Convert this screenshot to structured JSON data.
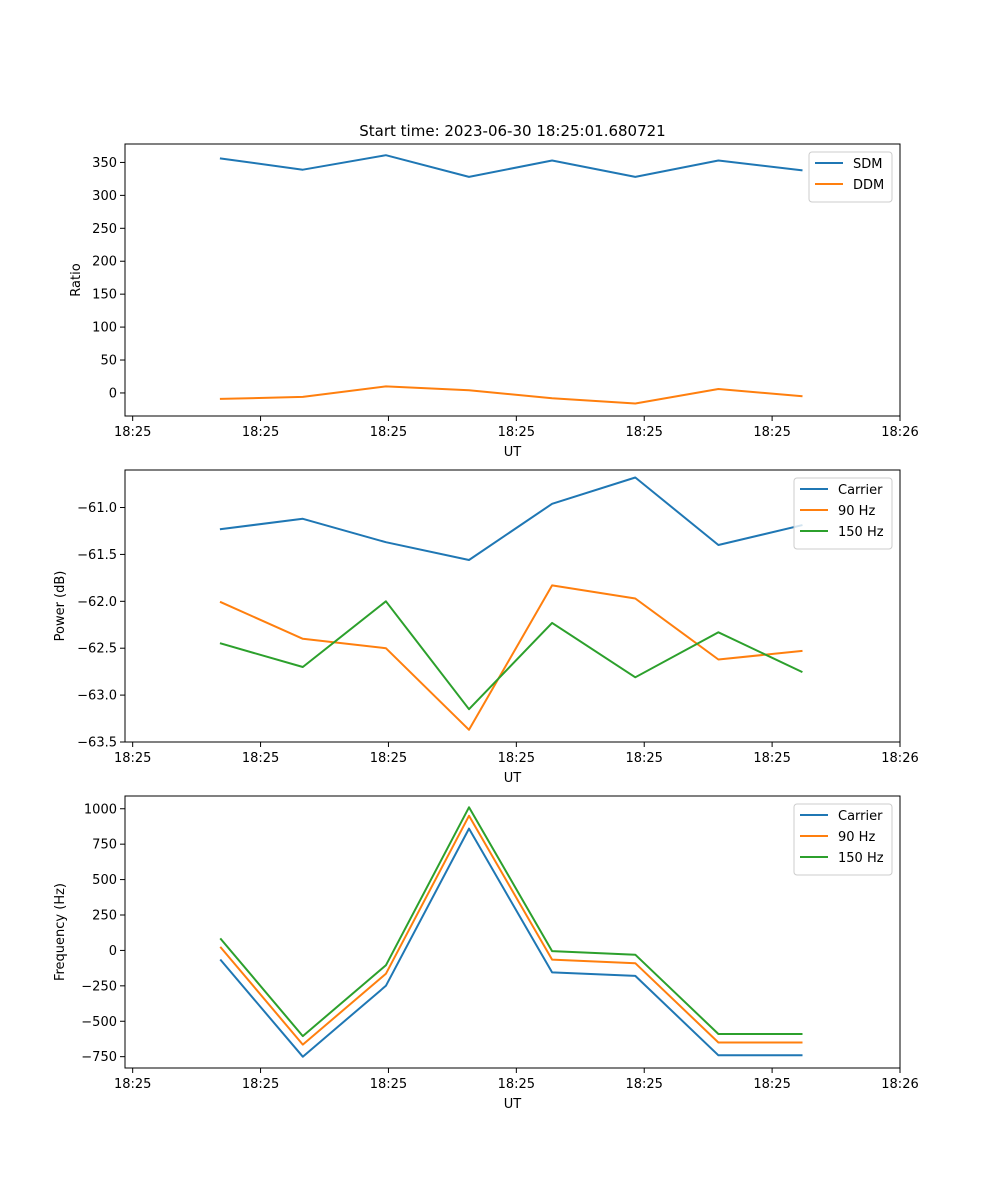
{
  "figure_title": "Start time: 2023-06-30 18:25:01.680721",
  "chart_data": [
    {
      "type": "line",
      "title": "Start time: 2023-06-30 18:25:01.680721",
      "xlabel": "UT",
      "ylabel": "Ratio",
      "x": [
        0.69,
        1.33,
        1.98,
        2.63,
        3.28,
        3.93,
        4.58,
        5.23
      ],
      "xlim": [
        -0.06,
        6.0
      ],
      "ylim": [
        -35,
        378
      ],
      "x_ticks": [
        {
          "value": 0,
          "label": "18:25"
        },
        {
          "value": 1,
          "label": "18:25"
        },
        {
          "value": 2,
          "label": "18:25"
        },
        {
          "value": 3,
          "label": "18:25"
        },
        {
          "value": 4,
          "label": "18:25"
        },
        {
          "value": 5,
          "label": "18:25"
        },
        {
          "value": 6,
          "label": "18:26"
        }
      ],
      "y_ticks": [
        0,
        50,
        100,
        150,
        200,
        250,
        300,
        350
      ],
      "y_tick_labels": [
        "0",
        "50",
        "100",
        "150",
        "200",
        "250",
        "300",
        "350"
      ],
      "legend_position": "upper right",
      "grid": false,
      "series": [
        {
          "name": "SDM",
          "color": "#1f77b4",
          "values": [
            356,
            339,
            361,
            328,
            353,
            328,
            353,
            338
          ]
        },
        {
          "name": "DDM",
          "color": "#ff7f0e",
          "values": [
            -9,
            -6,
            10,
            4,
            -8,
            -16,
            6,
            -5
          ]
        }
      ]
    },
    {
      "type": "line",
      "xlabel": "UT",
      "ylabel": "Power (dB)",
      "x": [
        0.69,
        1.33,
        1.98,
        2.63,
        3.28,
        3.93,
        4.58,
        5.23
      ],
      "xlim": [
        -0.06,
        6.0
      ],
      "ylim": [
        -63.5,
        -60.6
      ],
      "x_ticks": [
        {
          "value": 0,
          "label": "18:25"
        },
        {
          "value": 1,
          "label": "18:25"
        },
        {
          "value": 2,
          "label": "18:25"
        },
        {
          "value": 3,
          "label": "18:25"
        },
        {
          "value": 4,
          "label": "18:25"
        },
        {
          "value": 5,
          "label": "18:25"
        },
        {
          "value": 6,
          "label": "18:26"
        }
      ],
      "y_ticks": [
        -63.5,
        -63.0,
        -62.5,
        -62.0,
        -61.5,
        -61.0
      ],
      "y_tick_labels": [
        "−63.5",
        "−63.0",
        "−62.5",
        "−62.0",
        "−61.5",
        "−61.0"
      ],
      "legend_position": "upper right",
      "grid": false,
      "series": [
        {
          "name": "Carrier",
          "color": "#1f77b4",
          "values": [
            -61.23,
            -61.12,
            -61.37,
            -61.56,
            -60.96,
            -60.68,
            -61.4,
            -61.19
          ]
        },
        {
          "name": "90 Hz",
          "color": "#ff7f0e",
          "values": [
            -62.01,
            -62.4,
            -62.5,
            -63.37,
            -61.83,
            -61.97,
            -62.62,
            -62.53
          ]
        },
        {
          "name": "150 Hz",
          "color": "#2ca02c",
          "values": [
            -62.45,
            -62.7,
            -62.0,
            -63.15,
            -62.23,
            -62.81,
            -62.33,
            -62.75
          ]
        }
      ]
    },
    {
      "type": "line",
      "xlabel": "UT",
      "ylabel": "Frequency (Hz)",
      "x": [
        0.69,
        1.33,
        1.98,
        2.63,
        3.28,
        3.93,
        4.58,
        5.23
      ],
      "xlim": [
        -0.06,
        6.0
      ],
      "ylim": [
        -830,
        1090
      ],
      "x_ticks": [
        {
          "value": 0,
          "label": "18:25"
        },
        {
          "value": 1,
          "label": "18:25"
        },
        {
          "value": 2,
          "label": "18:25"
        },
        {
          "value": 3,
          "label": "18:25"
        },
        {
          "value": 4,
          "label": "18:25"
        },
        {
          "value": 5,
          "label": "18:25"
        },
        {
          "value": 6,
          "label": "18:26"
        }
      ],
      "y_ticks": [
        -750,
        -500,
        -250,
        0,
        250,
        500,
        750,
        1000
      ],
      "y_tick_labels": [
        "−750",
        "−500",
        "−250",
        "0",
        "250",
        "500",
        "750",
        "1000"
      ],
      "legend_position": "upper right",
      "grid": false,
      "series": [
        {
          "name": "Carrier",
          "color": "#1f77b4",
          "values": [
            -70,
            -750,
            -250,
            860,
            -155,
            -180,
            -740,
            -740
          ]
        },
        {
          "name": "90 Hz",
          "color": "#ff7f0e",
          "values": [
            20,
            -665,
            -165,
            950,
            -65,
            -90,
            -650,
            -650
          ]
        },
        {
          "name": "150 Hz",
          "color": "#2ca02c",
          "values": [
            80,
            -605,
            -105,
            1010,
            -5,
            -30,
            -590,
            -590
          ]
        }
      ]
    }
  ]
}
